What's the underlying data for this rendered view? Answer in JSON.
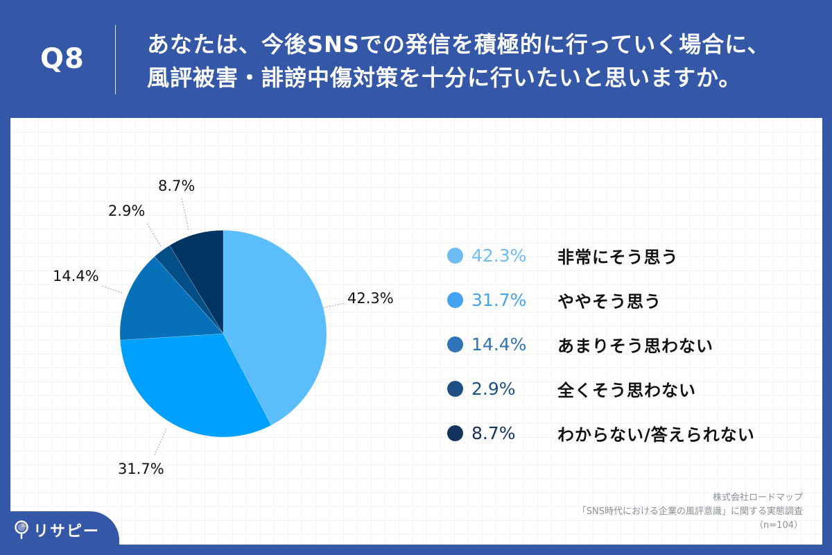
{
  "header": {
    "question_label": "Q8",
    "title_line1": "あなたは、今後SNSでの発信を積極的に行っていく場合に、",
    "title_line2": "風評被害・誹謗中傷対策を十分に行いたいと思いますか。",
    "background_color": "#3457A8"
  },
  "chart_data": {
    "type": "pie",
    "title": "あなたは、今後SNSでの発信を積極的に行っていく場合に、風評被害・誹謗中傷対策を十分に行いたいと思いますか。",
    "categories": [
      "非常にそう思う",
      "ややそう思う",
      "あまりそう思わない",
      "全くそう思わない",
      "わからない/答えられない"
    ],
    "values": [
      42.3,
      31.7,
      14.4,
      2.9,
      8.7
    ],
    "unit": "%",
    "slice_colors": [
      "#5BBDFB",
      "#00A0FF",
      "#0671B8",
      "#014F86",
      "#003561"
    ],
    "start_angle": "12 o'clock, clockwise",
    "legend_position": "right",
    "n": 104
  },
  "pie_labels": [
    {
      "text": "42.3%"
    },
    {
      "text": "31.7%"
    },
    {
      "text": "14.4%"
    },
    {
      "text": "2.9%"
    },
    {
      "text": "8.7%"
    }
  ],
  "legend": {
    "items": [
      {
        "pct": "42.3%",
        "label": "非常にそう思う",
        "color": "#6CBCF5"
      },
      {
        "pct": "31.7%",
        "label": "ややそう思う",
        "color": "#44A3F1"
      },
      {
        "pct": "14.4%",
        "label": "あまりそう思わない",
        "color": "#2F72B5"
      },
      {
        "pct": "2.9%",
        "label": "全くそう思わない",
        "color": "#1E4F84"
      },
      {
        "pct": "8.7%",
        "label": "わからない/答えられない",
        "color": "#13335F"
      }
    ]
  },
  "source": {
    "company": "株式会社ロードマップ",
    "survey": "「SNS時代における企業の風評意識」に関する実態調査",
    "sample": "（n=104）"
  },
  "brand": {
    "name": "リサピー"
  }
}
